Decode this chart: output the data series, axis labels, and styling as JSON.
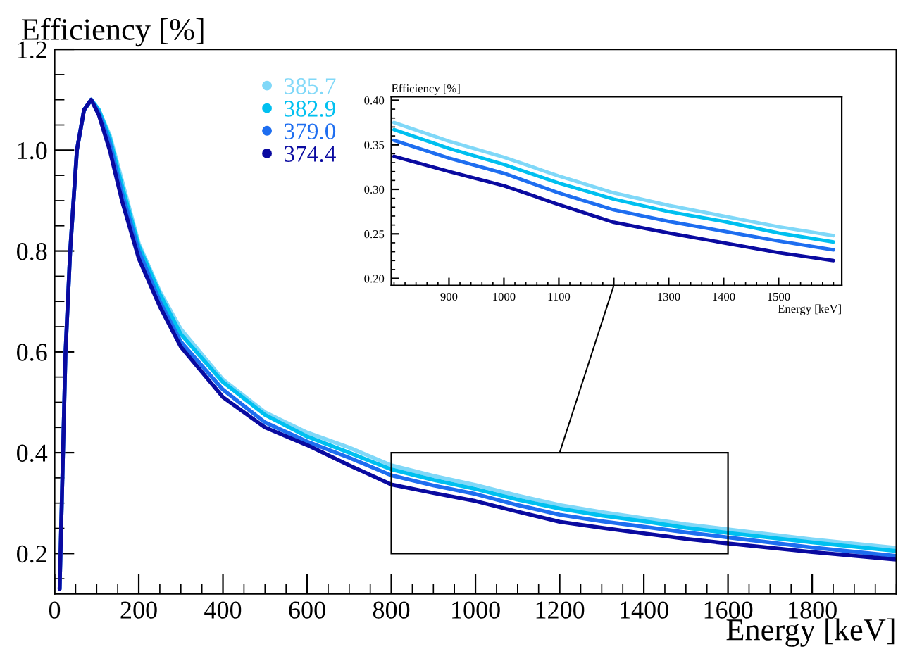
{
  "chart_data": [
    {
      "type": "line",
      "xlabel": "Energy [keV]",
      "ylabel": "Efficiency [%]",
      "x": [
        12,
        20,
        26,
        37,
        53,
        70,
        87,
        105,
        131,
        160,
        200,
        250,
        300,
        400,
        500,
        600,
        700,
        800,
        900,
        1000,
        1100,
        1200,
        1300,
        1400,
        1500,
        1600,
        1800,
        2000
      ],
      "series": [
        {
          "name": "385.7",
          "color": "#80d8f8",
          "values": [
            0.13,
            0.4,
            0.6,
            0.8,
            1.0,
            1.08,
            1.1,
            1.08,
            1.03,
            0.94,
            0.815,
            0.72,
            0.645,
            0.545,
            0.48,
            0.44,
            0.41,
            0.375,
            0.354,
            0.336,
            0.315,
            0.296,
            0.282,
            0.27,
            0.258,
            0.248,
            0.228,
            0.211
          ]
        },
        {
          "name": "382.9",
          "color": "#00c0f0",
          "values": [
            null,
            null,
            null,
            null,
            null,
            1.08,
            1.1,
            1.08,
            1.025,
            0.93,
            0.81,
            0.715,
            0.635,
            0.54,
            0.475,
            0.432,
            0.4,
            0.367,
            0.346,
            0.328,
            0.307,
            0.289,
            0.275,
            0.264,
            0.251,
            0.241,
            0.222,
            0.205
          ]
        },
        {
          "name": "379.0",
          "color": "#1e6ef0",
          "values": [
            0.13,
            0.4,
            0.6,
            0.8,
            1.0,
            1.08,
            1.1,
            1.075,
            1.015,
            0.915,
            0.8,
            0.7,
            0.62,
            0.525,
            0.46,
            0.422,
            0.39,
            0.355,
            0.335,
            0.318,
            0.296,
            0.277,
            0.264,
            0.253,
            0.242,
            0.232,
            0.212,
            0.195
          ]
        },
        {
          "name": "374.4",
          "color": "#0a0aa0",
          "values": [
            0.13,
            0.4,
            0.6,
            0.8,
            1.0,
            1.08,
            1.1,
            1.07,
            1.0,
            0.9,
            0.785,
            0.69,
            0.61,
            0.51,
            0.45,
            0.415,
            0.375,
            0.337,
            0.32,
            0.304,
            0.283,
            0.263,
            0.251,
            0.24,
            0.229,
            0.22,
            0.203,
            0.188
          ]
        }
      ],
      "xlim": [
        0,
        2000
      ],
      "ylim": [
        0.12,
        1.2
      ],
      "xticks": [
        0,
        200,
        400,
        600,
        800,
        1000,
        1200,
        1400,
        1600,
        1800
      ],
      "yticks": [
        0.2,
        0.4,
        0.6,
        0.8,
        {
          "value": 1.0,
          "label": "1.0"
        },
        1.2
      ],
      "legend": "top left",
      "grid": false
    },
    {
      "type": "line",
      "xlabel": "Energy [keV]",
      "ylabel": "Efficiency [%]",
      "x": [
        800,
        900,
        1000,
        1100,
        1200,
        1300,
        1400,
        1500,
        1600
      ],
      "series": [
        {
          "color": "#80d8f8",
          "values": [
            0.375,
            0.354,
            0.336,
            0.315,
            0.296,
            0.282,
            0.27,
            0.258,
            0.248
          ]
        },
        {
          "color": "#00c0f0",
          "values": [
            0.367,
            0.346,
            0.328,
            0.307,
            0.289,
            0.275,
            0.264,
            0.251,
            0.241
          ]
        },
        {
          "color": "#1e6ef0",
          "values": [
            0.355,
            0.335,
            0.318,
            0.296,
            0.277,
            0.264,
            0.253,
            0.242,
            0.232
          ]
        },
        {
          "color": "#0a0aa0",
          "values": [
            0.337,
            0.32,
            0.304,
            0.283,
            0.263,
            0.251,
            0.24,
            0.229,
            0.22
          ]
        }
      ],
      "xlim": [
        795,
        1615
      ],
      "ylim": [
        0.192,
        0.404
      ],
      "xticks": [
        900,
        1000,
        1100,
        {
          "value": 1200,
          "label": null
        },
        1300,
        1400,
        1500
      ],
      "yticks": [
        {
          "value": 0.2,
          "label": "0.20"
        },
        {
          "value": 0.25,
          "label": "0.25"
        },
        {
          "value": 0.3,
          "label": "0.30"
        },
        {
          "value": 0.35,
          "label": "0.35"
        },
        {
          "value": 0.4,
          "label": "0.40"
        }
      ],
      "grid": false
    }
  ]
}
